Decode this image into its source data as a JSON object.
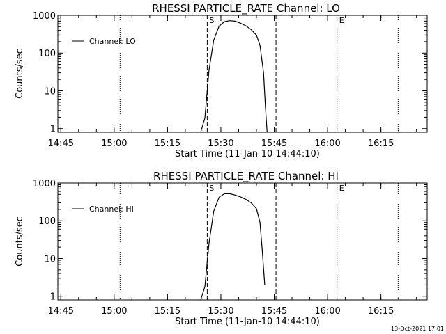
{
  "chart_data": [
    {
      "type": "line",
      "title": "RHESSI PARTICLE_RATE Channel: LO",
      "xlabel": "Start Time (11-Jan-10 14:44:10)",
      "ylabel": "Counts/sec",
      "xlim": [
        "14:44:10",
        "16:28:00"
      ],
      "ylim": [
        0.8,
        1000
      ],
      "yscale": "log",
      "xticks": [
        "14:45",
        "15:00",
        "15:15",
        "15:30",
        "15:45",
        "16:00",
        "16:15"
      ],
      "yticks": [
        "1",
        "10",
        "100",
        "1000"
      ],
      "legend": {
        "position": "top-left",
        "entries": [
          "Channel: LO"
        ]
      },
      "series": [
        {
          "name": "Channel: LO",
          "x": [
            "15:24:20",
            "15:25:30",
            "15:26:40",
            "15:28:00",
            "15:29:30",
            "15:31:00",
            "15:32:30",
            "15:34:00",
            "15:35:30",
            "15:37:00",
            "15:38:30",
            "15:40:00",
            "15:41:00",
            "15:42:00",
            "15:42:30",
            "15:43:00"
          ],
          "y": [
            0.8,
            1.9,
            35,
            220,
            520,
            680,
            720,
            700,
            620,
            530,
            420,
            300,
            160,
            30,
            4,
            0.8
          ]
        }
      ],
      "vlines": [
        {
          "time": "14:44:10",
          "style": "dotted",
          "label": ""
        },
        {
          "time": "15:01:40",
          "style": "dotted",
          "label": ""
        },
        {
          "time": "15:26:10",
          "style": "dashed",
          "label": "S"
        },
        {
          "time": "15:45:30",
          "style": "dashed",
          "label": ""
        },
        {
          "time": "16:02:40",
          "style": "dotted",
          "label": "E"
        },
        {
          "time": "16:19:50",
          "style": "dotted",
          "label": ""
        }
      ]
    },
    {
      "type": "line",
      "title": "RHESSI PARTICLE_RATE Channel: HI",
      "xlabel": "Start Time (11-Jan-10 14:44:10)",
      "ylabel": "Counts/sec",
      "xlim": [
        "14:44:10",
        "16:28:00"
      ],
      "ylim": [
        0.8,
        1000
      ],
      "yscale": "log",
      "xticks": [
        "14:45",
        "15:00",
        "15:15",
        "15:30",
        "15:45",
        "16:00",
        "16:15"
      ],
      "yticks": [
        "1",
        "10",
        "100",
        "1000"
      ],
      "legend": {
        "position": "top-left",
        "entries": [
          "Channel: HI"
        ]
      },
      "series": [
        {
          "name": "Channel: HI",
          "x": [
            "15:24:20",
            "15:25:30",
            "15:26:40",
            "15:28:00",
            "15:29:30",
            "15:31:00",
            "15:32:30",
            "15:34:00",
            "15:35:30",
            "15:37:00",
            "15:38:30",
            "15:40:00",
            "15:41:00",
            "15:41:40",
            "15:42:20"
          ],
          "y": [
            0.8,
            1.8,
            25,
            180,
            420,
            520,
            520,
            480,
            430,
            370,
            300,
            210,
            90,
            15,
            2
          ]
        }
      ],
      "vlines": [
        {
          "time": "14:44:10",
          "style": "dotted",
          "label": ""
        },
        {
          "time": "15:01:40",
          "style": "dotted",
          "label": ""
        },
        {
          "time": "15:26:10",
          "style": "dashed",
          "label": "S"
        },
        {
          "time": "15:45:30",
          "style": "dashed",
          "label": ""
        },
        {
          "time": "16:02:40",
          "style": "dotted",
          "label": "E"
        },
        {
          "time": "16:19:50",
          "style": "dotted",
          "label": ""
        }
      ]
    }
  ],
  "footer": {
    "timestamp": "13-Oct-2021 17:01"
  }
}
